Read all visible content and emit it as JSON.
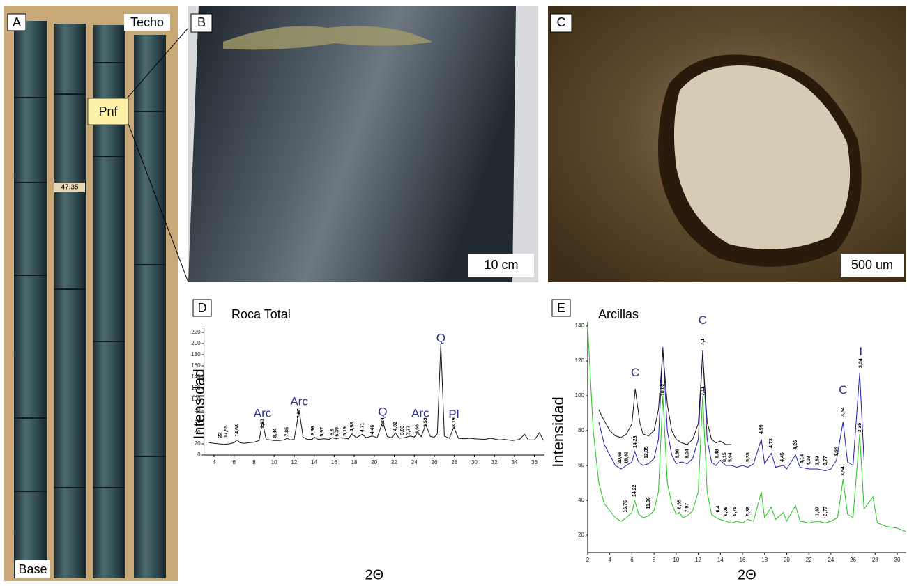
{
  "panels": {
    "a": {
      "label": "A",
      "top": "Techo",
      "bottom": "Base",
      "unit": "Pnf",
      "depth": "47.35"
    },
    "b": {
      "label": "B",
      "scale": "10 cm"
    },
    "c": {
      "label": "C",
      "scale": "500 um"
    },
    "d": {
      "label": "D"
    },
    "e": {
      "label": "E"
    }
  },
  "chart_data": [
    {
      "type": "line",
      "title": "Roca Total",
      "ylabel": "Intensidad",
      "xlabel": "2Θ",
      "xlim": [
        3,
        37
      ],
      "ylim": [
        0,
        220
      ],
      "xticks": [
        4,
        6,
        8,
        10,
        12,
        14,
        16,
        18,
        20,
        22,
        24,
        26,
        28,
        30,
        32,
        34,
        36
      ],
      "yticks": [
        0,
        20,
        40,
        60,
        80,
        100,
        120,
        140,
        160,
        180,
        200,
        220
      ],
      "series": [
        {
          "color": "#111111",
          "x": [
            3.5,
            4,
            4.5,
            5,
            5.5,
            6,
            6.3,
            6.6,
            7,
            7.5,
            8,
            8.5,
            8.84,
            9.2,
            9.6,
            10,
            10.5,
            11,
            11.3,
            11.6,
            12,
            12.5,
            12.9,
            13.3,
            13.8,
            14,
            14.4,
            15,
            15.5,
            15.8,
            16.2,
            16.6,
            17,
            17.4,
            17.8,
            18.2,
            18.8,
            19.2,
            19.8,
            20.3,
            20.85,
            21.3,
            21.8,
            22.1,
            22.5,
            23,
            23.6,
            24,
            24.3,
            24.7,
            25.15,
            25.6,
            26,
            26.3,
            26.65,
            27,
            27.5,
            27.95,
            28.4,
            29,
            29.6,
            30,
            31,
            31.6,
            32.5,
            33,
            33.8,
            34.5,
            35,
            35.4,
            36,
            36.5,
            36.9
          ],
          "values": [
            22,
            21,
            20,
            19,
            20,
            22,
            27,
            22,
            21,
            22,
            23,
            26,
            60,
            28,
            27,
            26,
            26,
            27,
            30,
            27,
            28,
            80,
            32,
            28,
            28,
            32,
            28,
            29,
            28,
            31,
            29,
            31,
            30,
            29,
            38,
            31,
            37,
            31,
            34,
            31,
            60,
            33,
            31,
            40,
            30,
            31,
            34,
            32,
            40,
            33,
            55,
            33,
            32,
            38,
            200,
            34,
            30,
            50,
            30,
            29,
            30,
            29,
            28,
            30,
            27,
            28,
            26,
            28,
            37,
            27,
            27,
            40,
            26
          ]
        }
      ],
      "annotations": [
        {
          "label": "Arc",
          "x": 8.84,
          "y": 74
        },
        {
          "label": "Arc",
          "x": 12.5,
          "y": 95
        },
        {
          "label": "Q",
          "x": 20.85,
          "y": 76
        },
        {
          "label": "Arc",
          "x": 24.6,
          "y": 74
        },
        {
          "label": "Q",
          "x": 26.65,
          "y": 209
        },
        {
          "label": "Pl",
          "x": 27.95,
          "y": 72
        }
      ],
      "peak_labels": [
        {
          "label": "22",
          "x": 4.6,
          "y": 31
        },
        {
          "label": "17,55",
          "x": 5.2,
          "y": 31
        },
        {
          "label": "14,08",
          "x": 6.3,
          "y": 33
        },
        {
          "label": "9,93",
          "x": 8.84,
          "y": 48
        },
        {
          "label": "8,84",
          "x": 10.1,
          "y": 31
        },
        {
          "label": "7,85",
          "x": 11.3,
          "y": 33
        },
        {
          "label": "7,07",
          "x": 12.5,
          "y": 66
        },
        {
          "label": "6,36",
          "x": 13.9,
          "y": 35
        },
        {
          "label": "5,97",
          "x": 14.8,
          "y": 33
        },
        {
          "label": "5,6",
          "x": 15.8,
          "y": 35
        },
        {
          "label": "5,39",
          "x": 16.3,
          "y": 33
        },
        {
          "label": "5,19",
          "x": 17.1,
          "y": 34
        },
        {
          "label": "4,98",
          "x": 17.8,
          "y": 42
        },
        {
          "label": "4,71",
          "x": 18.8,
          "y": 41
        },
        {
          "label": "4,46",
          "x": 19.8,
          "y": 37
        },
        {
          "label": "4,24",
          "x": 20.85,
          "y": 50
        },
        {
          "label": "4,02",
          "x": 22.1,
          "y": 43
        },
        {
          "label": "3,93",
          "x": 22.8,
          "y": 36
        },
        {
          "label": "3,77",
          "x": 23.4,
          "y": 36
        },
        {
          "label": "3,66",
          "x": 24.3,
          "y": 38
        },
        {
          "label": "3,53",
          "x": 25.15,
          "y": 50
        },
        {
          "label": "3,19",
          "x": 27.95,
          "y": 50
        }
      ]
    },
    {
      "type": "line",
      "title": "Arcillas",
      "ylabel": "Intensidad",
      "xlabel": "2Θ",
      "xlim": [
        2,
        30.8
      ],
      "ylim": [
        10,
        140
      ],
      "xticks": [
        2,
        4,
        6,
        8,
        10,
        12,
        14,
        16,
        18,
        20,
        22,
        24,
        26,
        28,
        30
      ],
      "yticks": [
        20,
        40,
        60,
        80,
        100,
        120,
        140
      ],
      "series": [
        {
          "color": "#22c41e",
          "x": [
            2,
            2.5,
            3,
            3.5,
            4,
            4.5,
            5,
            5.5,
            6,
            6.25,
            6.6,
            7,
            7.5,
            8,
            8.4,
            8.8,
            9.2,
            9.6,
            10,
            10.3,
            10.6,
            11,
            11.5,
            12,
            12.4,
            12.8,
            13.2,
            13.6,
            14,
            14.5,
            15,
            15.5,
            16,
            16.5,
            17,
            17.7,
            18,
            18.6,
            19,
            19.7,
            20,
            20.8,
            21.2,
            22,
            22.8,
            23.5,
            24,
            24.6,
            25.1,
            25.5,
            26,
            26.6,
            27,
            27.8,
            28.2,
            29,
            30,
            30.8
          ],
          "values": [
            140,
            80,
            50,
            38,
            34,
            30,
            28,
            30,
            33,
            40,
            32,
            30,
            31,
            34,
            45,
            100,
            50,
            38,
            32,
            33,
            30,
            31,
            34,
            45,
            100,
            45,
            32,
            30,
            29,
            28,
            27,
            28,
            27,
            29,
            28,
            45,
            30,
            36,
            29,
            33,
            28,
            37,
            28,
            27,
            28,
            27,
            28,
            30,
            52,
            32,
            30,
            78,
            35,
            42,
            27,
            25,
            24,
            22
          ]
        },
        {
          "color": "#1c1ca8",
          "x": [
            3,
            3.5,
            4,
            4.5,
            5,
            5.5,
            6,
            6.25,
            6.6,
            7,
            7.5,
            8,
            8.4,
            8.8,
            9.2,
            9.6,
            10,
            10.5,
            11,
            11.5,
            12,
            12.4,
            12.8,
            13.2,
            13.6,
            14,
            14.5,
            15,
            15.5,
            16,
            16.5,
            17,
            17.7,
            18,
            18.6,
            19,
            19.7,
            20,
            20.8,
            21.2,
            22,
            22.8,
            23.5,
            24,
            24.5,
            25.1,
            25.5,
            26,
            26.6,
            27
          ],
          "values": [
            85,
            72,
            66,
            60,
            58,
            60,
            62,
            68,
            62,
            60,
            61,
            64,
            75,
            128,
            80,
            66,
            61,
            62,
            61,
            64,
            75,
            126,
            75,
            62,
            60,
            63,
            60,
            60,
            59,
            60,
            59,
            61,
            75,
            61,
            67,
            59,
            60,
            58,
            66,
            59,
            58,
            58,
            57,
            58,
            63,
            85,
            62,
            60,
            113,
            63
          ]
        },
        {
          "color": "#111111",
          "x": [
            3,
            3.3,
            4,
            4.5,
            5,
            5.5,
            6,
            6.3,
            6.7,
            7,
            7.5,
            8,
            8.4,
            8.8,
            9.2,
            9.6,
            10,
            10.5,
            11,
            11.5,
            12,
            12.4,
            12.8,
            13.2,
            13.6,
            14,
            14.5,
            15
          ],
          "values": [
            92,
            88,
            80,
            77,
            76,
            78,
            84,
            104,
            85,
            78,
            77,
            80,
            92,
            126,
            95,
            80,
            75,
            73,
            72,
            75,
            84,
            124,
            85,
            75,
            73,
            74,
            72,
            72
          ]
        }
      ],
      "annotations": [
        {
          "label": "C",
          "x": 6.3,
          "y": 113
        },
        {
          "label": "C",
          "x": 12.4,
          "y": 143
        },
        {
          "label": "C",
          "x": 25.1,
          "y": 103
        },
        {
          "label": "I",
          "x": 26.7,
          "y": 125
        }
      ],
      "peak_labels": [
        {
          "label": "7,1",
          "x": 12.4,
          "y": 129
        },
        {
          "label": "3,54",
          "x": 25.1,
          "y": 88
        },
        {
          "label": "3,34",
          "x": 26.7,
          "y": 116
        },
        {
          "label": "20,69",
          "x": 4.9,
          "y": 61
        },
        {
          "label": "18,82",
          "x": 5.5,
          "y": 61
        },
        {
          "label": "14,28",
          "x": 6.3,
          "y": 70
        },
        {
          "label": "12,35",
          "x": 7.3,
          "y": 64
        },
        {
          "label": "10,02",
          "x": 8.8,
          "y": 100
        },
        {
          "label": "8,86",
          "x": 10.1,
          "y": 64
        },
        {
          "label": "8,04",
          "x": 11.0,
          "y": 64
        },
        {
          "label": "7,11",
          "x": 12.4,
          "y": 100
        },
        {
          "label": "6,48",
          "x": 13.7,
          "y": 64
        },
        {
          "label": "6,15",
          "x": 14.4,
          "y": 62
        },
        {
          "label": "5,94",
          "x": 14.9,
          "y": 62
        },
        {
          "label": "5,35",
          "x": 16.5,
          "y": 62
        },
        {
          "label": "4,99",
          "x": 17.7,
          "y": 78
        },
        {
          "label": "4,73",
          "x": 18.6,
          "y": 70
        },
        {
          "label": "4,45",
          "x": 19.6,
          "y": 62
        },
        {
          "label": "4,26",
          "x": 20.8,
          "y": 69
        },
        {
          "label": "4,14",
          "x": 21.4,
          "y": 61
        },
        {
          "label": "4,03",
          "x": 22.0,
          "y": 60
        },
        {
          "label": "3,89",
          "x": 22.8,
          "y": 60
        },
        {
          "label": "3,77",
          "x": 23.5,
          "y": 60
        },
        {
          "label": "3,66",
          "x": 24.5,
          "y": 65
        },
        {
          "label": "3,35",
          "x": 26.6,
          "y": 79
        },
        {
          "label": "3,54",
          "x": 25.1,
          "y": 54
        },
        {
          "label": "16,76",
          "x": 5.4,
          "y": 33
        },
        {
          "label": "14,22",
          "x": 6.25,
          "y": 42
        },
        {
          "label": "11,96",
          "x": 7.5,
          "y": 35
        },
        {
          "label": "8,65",
          "x": 10.3,
          "y": 35
        },
        {
          "label": "7,97",
          "x": 11.0,
          "y": 33
        },
        {
          "label": "6,4",
          "x": 13.8,
          "y": 33
        },
        {
          "label": "6,06",
          "x": 14.5,
          "y": 31
        },
        {
          "label": "5,75",
          "x": 15.3,
          "y": 31
        },
        {
          "label": "5,38",
          "x": 16.5,
          "y": 31
        },
        {
          "label": "3,87",
          "x": 22.8,
          "y": 31
        },
        {
          "label": "3,77",
          "x": 23.5,
          "y": 31
        }
      ]
    }
  ]
}
